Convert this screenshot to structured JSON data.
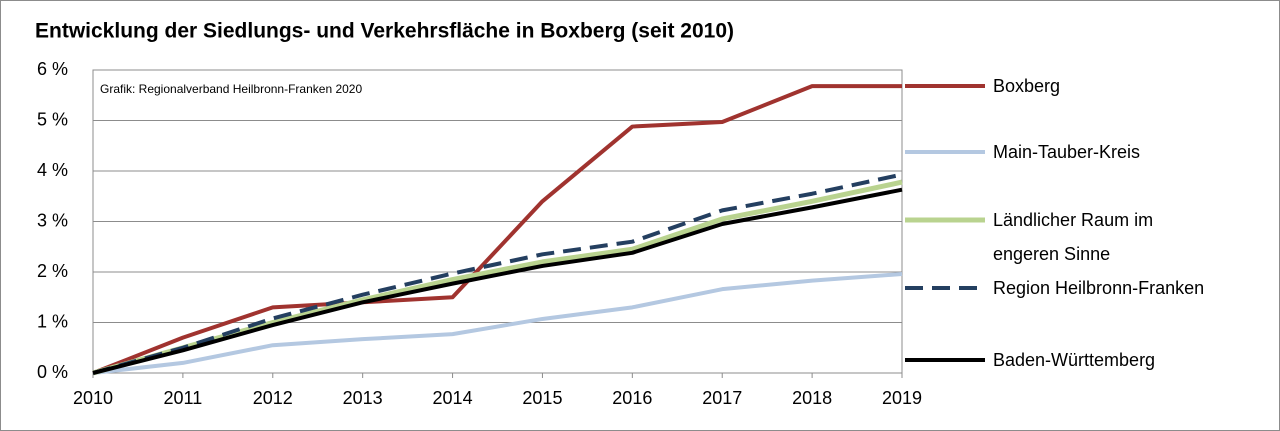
{
  "chart_data": {
    "type": "line",
    "title": "Entwicklung der Siedlungs- und Verkehrsfläche in Boxberg (seit 2010)",
    "annotation": "Grafik: Regionalverband Heilbronn-Franken 2020",
    "x": [
      2010,
      2011,
      2012,
      2013,
      2014,
      2015,
      2016,
      2017,
      2018,
      2019
    ],
    "xlim": [
      2010,
      2019
    ],
    "xticks": [
      2010,
      2011,
      2012,
      2013,
      2014,
      2015,
      2016,
      2017,
      2018,
      2019
    ],
    "ylim": [
      0,
      6
    ],
    "yticks": [
      {
        "value": 0,
        "label": "0 %"
      },
      {
        "value": 1,
        "label": "1 %"
      },
      {
        "value": 2,
        "label": "2 %"
      },
      {
        "value": 3,
        "label": "3 %"
      },
      {
        "value": 4,
        "label": "4 %"
      },
      {
        "value": 5,
        "label": "5 %"
      },
      {
        "value": 6,
        "label": "6 %"
      }
    ],
    "grid": true,
    "legend": "right",
    "series": [
      {
        "name": "Boxberg",
        "color": "#a0332f",
        "values": [
          0,
          0.7,
          1.3,
          1.4,
          1.5,
          3.4,
          4.88,
          4.97,
          5.68,
          5.68
        ]
      },
      {
        "name": "Main-Tauber-Kreis",
        "color": "#b4c8e1",
        "values": [
          0,
          0.2,
          0.55,
          0.67,
          0.77,
          1.07,
          1.3,
          1.66,
          1.83,
          1.96
        ]
      },
      {
        "name": "Ländlicher Raum im engeren Sinne",
        "color": "#b9d38f",
        "values": [
          0,
          0.5,
          1.0,
          1.45,
          1.85,
          2.2,
          2.45,
          3.05,
          3.4,
          3.78
        ]
      },
      {
        "name": "Region Heilbronn-Franken",
        "color": "#243f60",
        "dashed": true,
        "values": [
          0,
          0.5,
          1.08,
          1.55,
          1.97,
          2.35,
          2.6,
          3.22,
          3.55,
          3.93
        ]
      },
      {
        "name": "Baden-Württemberg",
        "color": "#000000",
        "values": [
          0,
          0.45,
          0.95,
          1.4,
          1.77,
          2.12,
          2.38,
          2.95,
          3.28,
          3.63
        ]
      }
    ]
  }
}
